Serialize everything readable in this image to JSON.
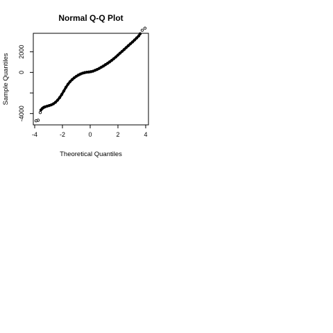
{
  "chart_data": {
    "type": "scatter",
    "title": "Normal Q-Q Plot",
    "xlabel": "Theoretical Quantiles",
    "ylabel": "Sample Quantiles",
    "xlim": [
      -4.1,
      4.2
    ],
    "ylim": [
      -5100,
      3800
    ],
    "x_ticks": [
      -4,
      -2,
      0,
      2,
      4
    ],
    "x_tick_labels": [
      "-4",
      "-2",
      "0",
      "2",
      "4"
    ],
    "y_ticks": [
      -4000,
      -2000,
      0,
      2000
    ],
    "y_tick_labels": [
      "-4000",
      "",
      "0",
      "2000"
    ],
    "grid": false,
    "legend": "none",
    "marker": "open-circle",
    "color": "#000000",
    "series": [
      {
        "x": [
          -3.9,
          -3.75,
          -3.6,
          -3.55,
          -3.45,
          -3.35,
          -3.25,
          -3.1,
          -2.95,
          -2.8,
          -2.65,
          -2.5,
          -2.35,
          -2.2,
          -2.05,
          -1.9,
          -1.75,
          -1.6,
          -1.45,
          -1.3,
          -1.15,
          -1.0,
          -0.85,
          -0.7,
          -0.55,
          -0.4,
          -0.25,
          -0.1,
          0.05,
          0.2,
          0.35,
          0.5,
          0.65,
          0.8,
          0.95,
          1.1,
          1.25,
          1.4,
          1.55,
          1.7,
          1.85,
          2.0,
          2.15,
          2.3,
          2.45,
          2.6,
          2.75,
          2.9,
          3.05,
          3.2,
          3.35,
          3.5,
          3.6,
          3.75,
          3.95
        ],
        "y": [
          -4700,
          -4650,
          -3900,
          -3650,
          -3500,
          -3400,
          -3350,
          -3280,
          -3220,
          -3150,
          -3050,
          -2900,
          -2700,
          -2450,
          -2150,
          -1800,
          -1450,
          -1150,
          -900,
          -700,
          -520,
          -380,
          -260,
          -160,
          -80,
          -20,
          20,
          40,
          70,
          120,
          200,
          290,
          390,
          500,
          620,
          750,
          880,
          1020,
          1170,
          1330,
          1500,
          1680,
          1870,
          2050,
          2230,
          2420,
          2600,
          2780,
          2960,
          3150,
          3350,
          3550,
          3750,
          4100,
          4300
        ]
      }
    ]
  }
}
